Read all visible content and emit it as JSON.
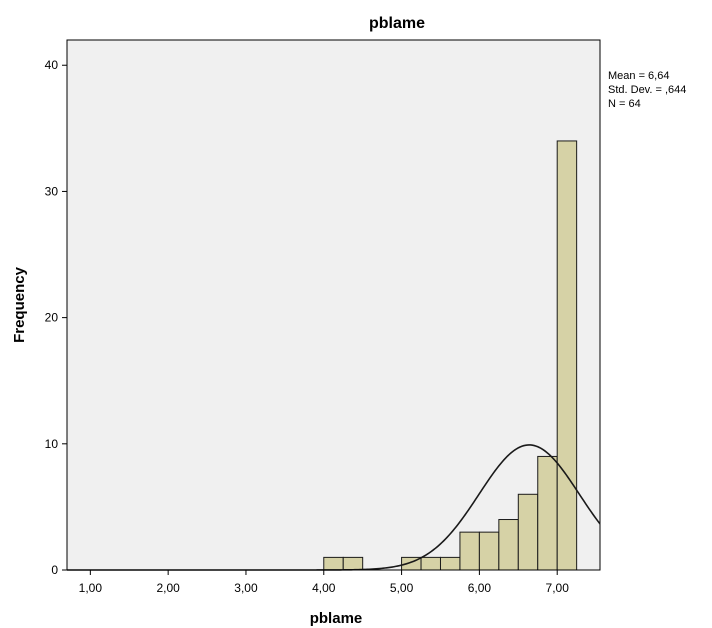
{
  "chart_data": {
    "type": "bar",
    "title": "pblame",
    "xlabel": "pblame",
    "ylabel": "Frequency",
    "xlim": [
      0.7,
      7.55
    ],
    "ylim": [
      0,
      42
    ],
    "x_ticks": [
      1,
      2,
      3,
      4,
      5,
      6,
      7
    ],
    "x_tick_labels": [
      "1,00",
      "2,00",
      "3,00",
      "4,00",
      "5,00",
      "6,00",
      "7,00"
    ],
    "y_ticks": [
      0,
      10,
      20,
      30,
      40
    ],
    "y_tick_labels": [
      "0",
      "10",
      "20",
      "30",
      "40"
    ],
    "bin_width": 0.25,
    "bins": [
      {
        "x0": 4.0,
        "x1": 4.25,
        "count": 1
      },
      {
        "x0": 4.25,
        "x1": 4.5,
        "count": 1
      },
      {
        "x0": 5.0,
        "x1": 5.25,
        "count": 1
      },
      {
        "x0": 5.25,
        "x1": 5.5,
        "count": 1
      },
      {
        "x0": 5.5,
        "x1": 5.75,
        "count": 1
      },
      {
        "x0": 5.75,
        "x1": 6.0,
        "count": 3
      },
      {
        "x0": 6.0,
        "x1": 6.25,
        "count": 3
      },
      {
        "x0": 6.25,
        "x1": 6.5,
        "count": 4
      },
      {
        "x0": 6.5,
        "x1": 6.75,
        "count": 6
      },
      {
        "x0": 6.75,
        "x1": 7.0,
        "count": 9
      },
      {
        "x0": 7.0,
        "x1": 7.25,
        "count": 34
      }
    ],
    "normal_curve": {
      "mean": 6.64,
      "std_dev": 0.644,
      "n": 64
    },
    "stats_lines": [
      "Mean = 6,64",
      "Std. Dev. = ,644",
      "N = 64"
    ],
    "grid": false,
    "colors": {
      "bar_fill": "#d6d2a6",
      "bar_stroke": "#1a1a1a",
      "plot_background": "#f0f0f0",
      "curve": "#1a1a1a"
    }
  }
}
